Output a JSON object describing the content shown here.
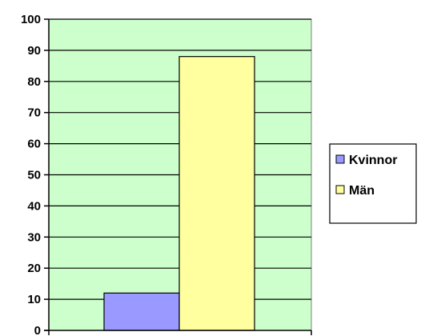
{
  "chart_data": {
    "type": "bar",
    "title": "",
    "xlabel": "",
    "ylabel": "",
    "ylim": [
      0,
      100
    ],
    "yticks": [
      0,
      10,
      20,
      30,
      40,
      50,
      60,
      70,
      80,
      90,
      100
    ],
    "grid": true,
    "legend_position": "right",
    "series": [
      {
        "name": "Kvinnor",
        "value": 12,
        "color": "#9999ff"
      },
      {
        "name": "Män",
        "value": 88,
        "color": "#ffffa0"
      }
    ],
    "plot_background": "#ccffcc"
  }
}
